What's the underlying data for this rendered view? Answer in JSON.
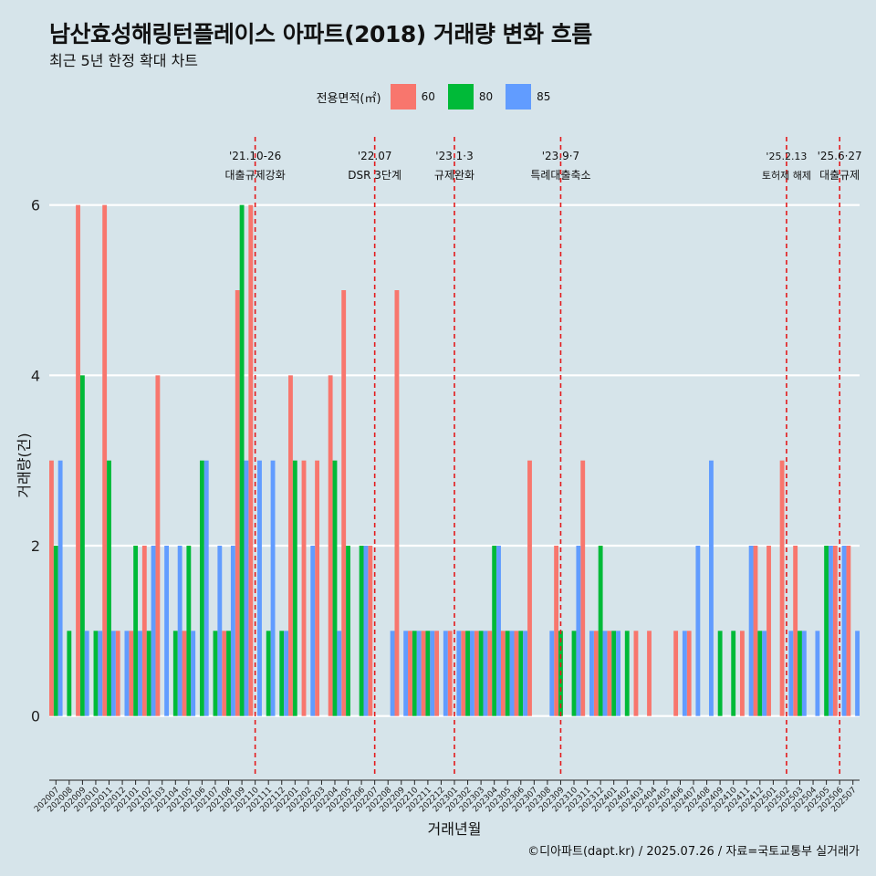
{
  "header": {
    "title": "남산효성해링턴플레이스 아파트(2018) 거래량 변화 흐름",
    "subtitle": "최근 5년 한정 확대 차트"
  },
  "legend": {
    "title": "전용면적(㎡)",
    "items": [
      {
        "label": "60",
        "color": "#f8766d"
      },
      {
        "label": "80",
        "color": "#00ba38"
      },
      {
        "label": "85",
        "color": "#619cff"
      }
    ]
  },
  "caption": "©디아파트(dapt.kr) / 2025.07.26 / 자료=국토교통부 실거래가",
  "chart_data": {
    "type": "bar",
    "xlabel": "거래년월",
    "ylabel": "거래량(건)",
    "ylim": [
      -0.7,
      6.8
    ],
    "yticks": [
      0,
      2,
      4,
      6
    ],
    "grid": true,
    "legend_position": "top",
    "categories": [
      "202007",
      "202008",
      "202009",
      "202010",
      "202011",
      "202012",
      "202101",
      "202102",
      "202103",
      "202104",
      "202105",
      "202106",
      "202107",
      "202108",
      "202109",
      "202110",
      "202111",
      "202112",
      "202201",
      "202202",
      "202203",
      "202204",
      "202205",
      "202206",
      "202207",
      "202208",
      "202209",
      "202210",
      "202211",
      "202212",
      "202301",
      "202302",
      "202303",
      "202304",
      "202305",
      "202306",
      "202307",
      "202308",
      "202309",
      "202310",
      "202311",
      "202312",
      "202401",
      "202402",
      "202403",
      "202404",
      "202405",
      "202406",
      "202407",
      "202408",
      "202409",
      "202410",
      "202411",
      "202412",
      "202501",
      "202502",
      "202503",
      "202504",
      "202505",
      "202506",
      "202507"
    ],
    "series": [
      {
        "name": "60",
        "color": "#f8766d",
        "values": [
          3,
          0,
          6,
          0,
          6,
          1,
          1,
          2,
          4,
          0,
          1,
          0,
          0,
          1,
          5,
          6,
          0,
          0,
          4,
          3,
          3,
          4,
          5,
          0,
          2,
          0,
          5,
          1,
          1,
          1,
          1,
          1,
          1,
          1,
          1,
          1,
          3,
          0,
          2,
          0,
          3,
          1,
          1,
          0,
          1,
          1,
          0,
          1,
          1,
          0,
          0,
          0,
          1,
          2,
          2,
          3,
          2,
          0,
          0,
          2,
          2
        ]
      },
      {
        "name": "80",
        "color": "#00ba38",
        "values": [
          2,
          1,
          4,
          1,
          3,
          0,
          2,
          1,
          0,
          1,
          2,
          3,
          1,
          1,
          6,
          0,
          1,
          1,
          3,
          0,
          0,
          3,
          2,
          2,
          0,
          0,
          0,
          1,
          1,
          0,
          0,
          1,
          1,
          2,
          1,
          1,
          0,
          0,
          1,
          1,
          0,
          2,
          1,
          1,
          0,
          0,
          0,
          0,
          0,
          0,
          1,
          1,
          0,
          1,
          0,
          0,
          1,
          0,
          2,
          0,
          0
        ]
      },
      {
        "name": "85",
        "color": "#619cff",
        "values": [
          3,
          0,
          1,
          1,
          1,
          1,
          1,
          2,
          2,
          2,
          1,
          3,
          2,
          2,
          3,
          3,
          3,
          1,
          0,
          2,
          0,
          1,
          0,
          2,
          0,
          1,
          1,
          1,
          1,
          1,
          1,
          1,
          1,
          2,
          1,
          1,
          0,
          1,
          0,
          2,
          1,
          1,
          1,
          0,
          0,
          0,
          0,
          1,
          2,
          3,
          0,
          0,
          2,
          1,
          0,
          1,
          1,
          1,
          2,
          2,
          1
        ]
      }
    ],
    "annotations": [
      {
        "category": "202110",
        "date_label": "'21.10-26",
        "text": "대출규제강화"
      },
      {
        "category": "202207",
        "date_label": "'22.07",
        "text": "DSR 3단계"
      },
      {
        "category": "202301",
        "date_label": "'23.1·3",
        "text": "규제완화"
      },
      {
        "category": "202309",
        "date_label": "'23.9·7",
        "text": "특례대출축소"
      },
      {
        "category": "202502",
        "date_label": "'25.2.13",
        "text": "토허제 해제"
      },
      {
        "category": "202506",
        "date_label": "'25.6·27",
        "text": "대출규제"
      }
    ]
  }
}
